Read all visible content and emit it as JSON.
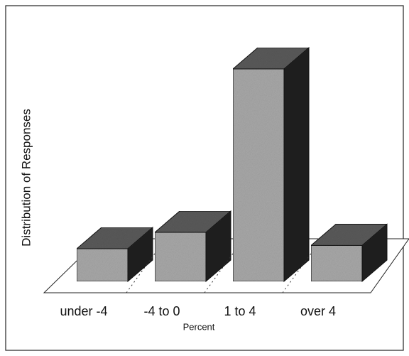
{
  "chart_data": {
    "type": "bar3d",
    "categories": [
      "under -4",
      "-4 to 0",
      "1 to 4",
      "over 4"
    ],
    "values": [
      10,
      15,
      65,
      11
    ],
    "ylabel": "Distribution of Responses",
    "xlabel": "Percent",
    "color": "#a8a8a8"
  }
}
